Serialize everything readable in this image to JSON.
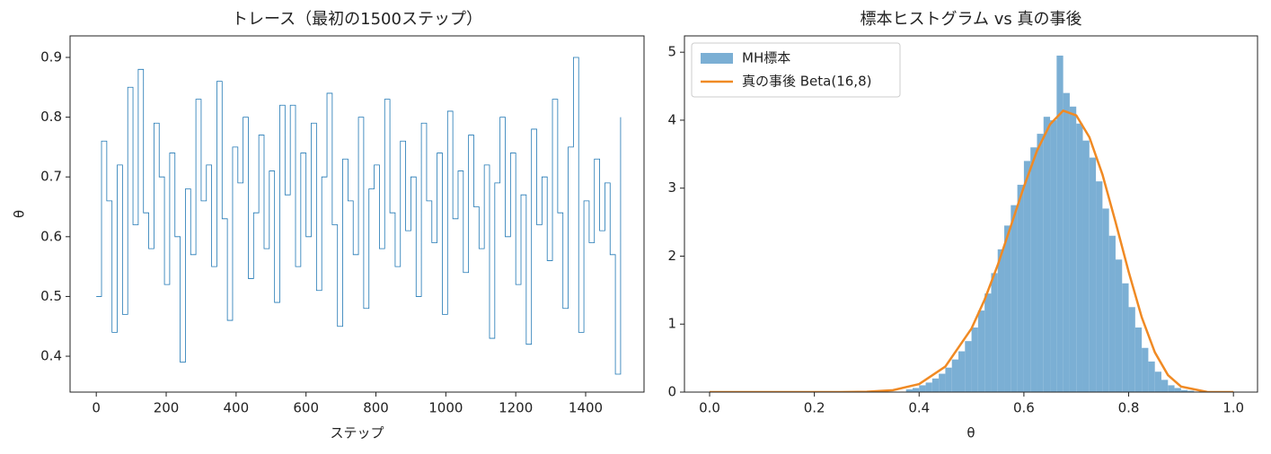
{
  "chart_data": [
    {
      "type": "line",
      "title": "トレース（最初の1500ステップ）",
      "xlabel": "ステップ",
      "ylabel": "θ",
      "color": "#1f77b4",
      "drawstyle": "steps-post",
      "x": [
        0,
        15,
        30,
        45,
        60,
        75,
        90,
        105,
        120,
        135,
        150,
        165,
        180,
        195,
        210,
        225,
        240,
        255,
        270,
        285,
        300,
        315,
        330,
        345,
        360,
        375,
        390,
        405,
        420,
        435,
        450,
        465,
        480,
        495,
        510,
        525,
        540,
        555,
        570,
        585,
        600,
        615,
        630,
        645,
        660,
        675,
        690,
        705,
        720,
        735,
        750,
        765,
        780,
        795,
        810,
        825,
        840,
        855,
        870,
        885,
        900,
        915,
        930,
        945,
        960,
        975,
        990,
        1005,
        1020,
        1035,
        1050,
        1065,
        1080,
        1095,
        1110,
        1125,
        1140,
        1155,
        1170,
        1185,
        1200,
        1215,
        1230,
        1245,
        1260,
        1275,
        1290,
        1305,
        1320,
        1335,
        1350,
        1365,
        1380,
        1395,
        1410,
        1425,
        1440,
        1455,
        1470,
        1485,
        1500
      ],
      "values": [
        0.5,
        0.76,
        0.66,
        0.44,
        0.72,
        0.47,
        0.85,
        0.62,
        0.88,
        0.64,
        0.58,
        0.79,
        0.7,
        0.52,
        0.74,
        0.6,
        0.39,
        0.68,
        0.57,
        0.83,
        0.66,
        0.72,
        0.55,
        0.86,
        0.63,
        0.46,
        0.75,
        0.69,
        0.8,
        0.53,
        0.64,
        0.77,
        0.58,
        0.71,
        0.49,
        0.82,
        0.67,
        0.82,
        0.55,
        0.74,
        0.6,
        0.79,
        0.51,
        0.7,
        0.84,
        0.62,
        0.45,
        0.73,
        0.66,
        0.57,
        0.8,
        0.48,
        0.68,
        0.72,
        0.58,
        0.83,
        0.64,
        0.55,
        0.76,
        0.61,
        0.7,
        0.5,
        0.79,
        0.66,
        0.59,
        0.74,
        0.47,
        0.81,
        0.63,
        0.71,
        0.54,
        0.77,
        0.65,
        0.58,
        0.72,
        0.43,
        0.69,
        0.8,
        0.6,
        0.74,
        0.52,
        0.67,
        0.42,
        0.78,
        0.62,
        0.7,
        0.56,
        0.83,
        0.64,
        0.48,
        0.75,
        0.9,
        0.44,
        0.66,
        0.59,
        0.73,
        0.61,
        0.69,
        0.57,
        0.37,
        0.8
      ],
      "xlim": [
        -75,
        1567
      ],
      "xticks": [
        0,
        200,
        400,
        600,
        800,
        1000,
        1200,
        1400
      ],
      "ylim": [
        0.34,
        0.936
      ],
      "yticks": [
        0.4,
        0.5,
        0.6,
        0.7,
        0.8,
        0.9
      ]
    },
    {
      "type": "histogram",
      "title": "標本ヒストグラム vs 真の事後",
      "xlabel": "θ",
      "name": "MH標本",
      "color": "#7bafd4",
      "bins": [
        0.375,
        0.3875,
        0.4,
        0.4125,
        0.425,
        0.4375,
        0.45,
        0.4625,
        0.475,
        0.4875,
        0.5,
        0.5125,
        0.525,
        0.5375,
        0.55,
        0.5625,
        0.575,
        0.5875,
        0.6,
        0.6125,
        0.625,
        0.6375,
        0.65,
        0.6625,
        0.675,
        0.6875,
        0.7,
        0.7125,
        0.725,
        0.7375,
        0.75,
        0.7625,
        0.775,
        0.7875,
        0.8,
        0.8125,
        0.825,
        0.8375,
        0.85,
        0.8625,
        0.875,
        0.8875,
        0.9,
        0.9125,
        0.925
      ],
      "values": [
        0.04,
        0.06,
        0.1,
        0.14,
        0.2,
        0.27,
        0.36,
        0.48,
        0.6,
        0.75,
        0.95,
        1.2,
        1.45,
        1.75,
        2.1,
        2.45,
        2.75,
        3.05,
        3.4,
        3.6,
        3.8,
        4.05,
        4.0,
        4.95,
        4.4,
        4.2,
        3.95,
        3.7,
        3.45,
        3.1,
        2.7,
        2.3,
        1.95,
        1.6,
        1.25,
        0.95,
        0.65,
        0.45,
        0.3,
        0.18,
        0.1,
        0.06,
        0.03,
        0.02
      ],
      "series": [
        {
          "name": "真の事後 Beta(16,8)",
          "color": "#f08a24",
          "x": [
            0,
            0.1,
            0.2,
            0.25,
            0.3,
            0.35,
            0.4,
            0.45,
            0.5,
            0.525,
            0.55,
            0.575,
            0.6,
            0.625,
            0.65,
            0.675,
            0.7,
            0.725,
            0.75,
            0.775,
            0.8,
            0.825,
            0.85,
            0.875,
            0.9,
            0.95,
            1.0
          ],
          "values": [
            0,
            0,
            0,
            0.0005,
            0.0046,
            0.028,
            0.118,
            0.375,
            0.935,
            1.36,
            1.868,
            2.44,
            3.02,
            3.55,
            3.94,
            4.14,
            4.07,
            3.75,
            3.2,
            2.5,
            1.77,
            1.1,
            0.585,
            0.25,
            0.081,
            0.0014,
            0
          ]
        }
      ],
      "legend": "upper left",
      "xlim": [
        -0.048,
        1.046
      ],
      "xticks": [
        {
          "value": 0,
          "label": "0.0"
        },
        0.2,
        0.4,
        0.6,
        0.8,
        {
          "value": 1,
          "label": "1.0"
        }
      ],
      "ylim": [
        0,
        5.24
      ],
      "yticks": [
        0,
        1,
        2,
        3,
        4,
        5
      ]
    }
  ]
}
